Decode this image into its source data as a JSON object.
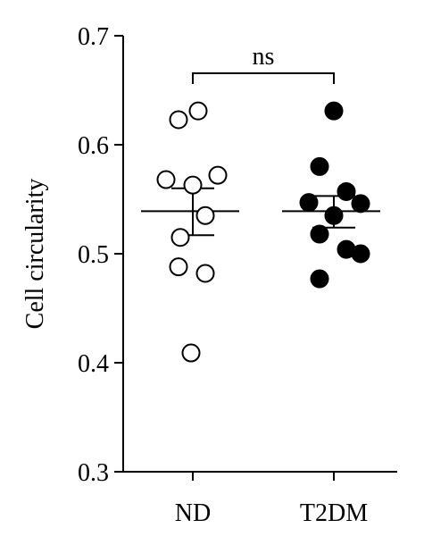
{
  "chart_data": {
    "type": "scatter",
    "title": "",
    "xlabel": "",
    "ylabel": "Cell circularity",
    "ylim": [
      0.3,
      0.7
    ],
    "yticks": [
      "0.3",
      "0.4",
      "0.5",
      "0.6",
      "0.7"
    ],
    "categories": [
      "ND",
      "T2DM"
    ],
    "grid": false,
    "legend": "none",
    "series": [
      {
        "category": "ND",
        "marker": "open-circle",
        "values": [
          0.631,
          0.623,
          0.572,
          0.568,
          0.563,
          0.535,
          0.515,
          0.488,
          0.482,
          0.409
        ],
        "mean": 0.539,
        "sem_low": 0.517,
        "sem_high": 0.56
      },
      {
        "category": "T2DM",
        "marker": "filled-circle",
        "values": [
          0.631,
          0.58,
          0.557,
          0.547,
          0.546,
          0.535,
          0.518,
          0.504,
          0.5,
          0.477
        ],
        "mean": 0.539,
        "sem_low": 0.524,
        "sem_high": 0.553
      }
    ],
    "annotations": [
      {
        "text": "ns",
        "type": "significance-bracket",
        "between": [
          "ND",
          "T2DM"
        ]
      }
    ],
    "colors": {
      "axis": "#000000",
      "marker_fill_filled": "#000000",
      "marker_fill_open": "#ffffff"
    }
  }
}
